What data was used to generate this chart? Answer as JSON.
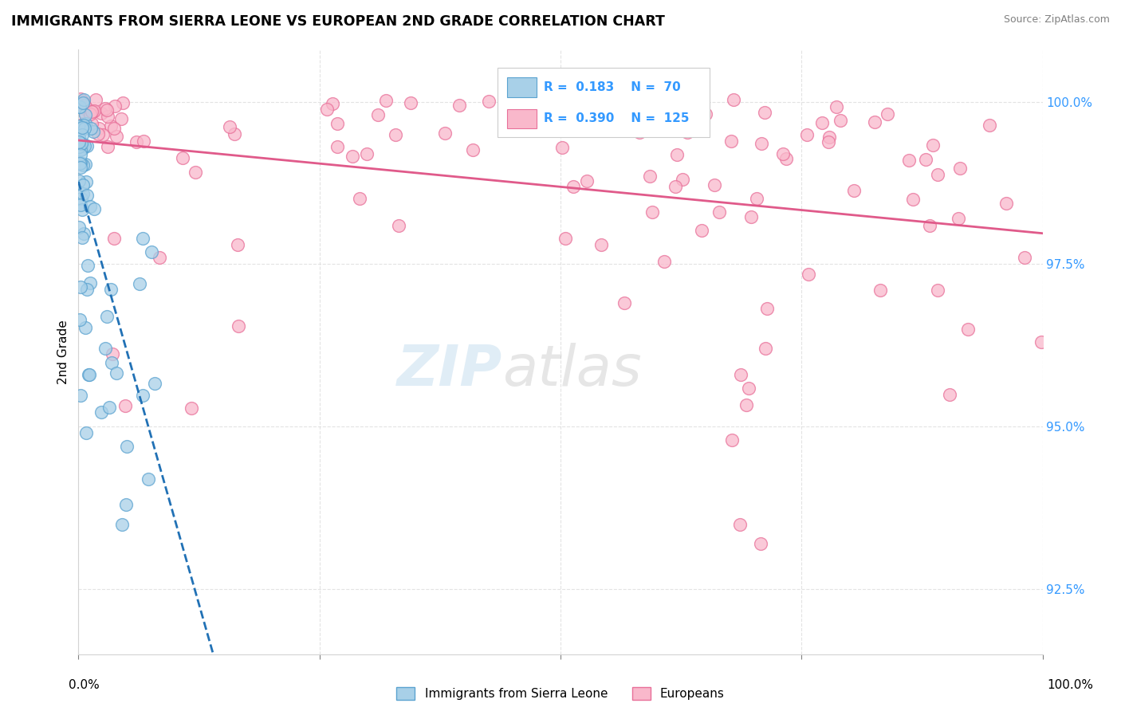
{
  "title": "IMMIGRANTS FROM SIERRA LEONE VS EUROPEAN 2ND GRADE CORRELATION CHART",
  "source": "Source: ZipAtlas.com",
  "ylabel": "2nd Grade",
  "watermark_zip": "ZIP",
  "watermark_atlas": "atlas",
  "blue_R": 0.183,
  "blue_N": 70,
  "pink_R": 0.39,
  "pink_N": 125,
  "blue_legend": "Immigrants from Sierra Leone",
  "pink_legend": "Europeans",
  "blue_color": "#a8d0e8",
  "pink_color": "#f9b8cb",
  "blue_edge": "#5ba3d0",
  "pink_edge": "#e87099",
  "blue_line_color": "#2171b5",
  "pink_line_color": "#e05a8a",
  "xmin": 0.0,
  "xmax": 100.0,
  "ymin": 91.5,
  "ymax": 100.8,
  "yticks": [
    92.5,
    95.0,
    97.5,
    100.0
  ],
  "ytick_labels": [
    "92.5%",
    "95.0%",
    "97.5%",
    "100.0%"
  ]
}
